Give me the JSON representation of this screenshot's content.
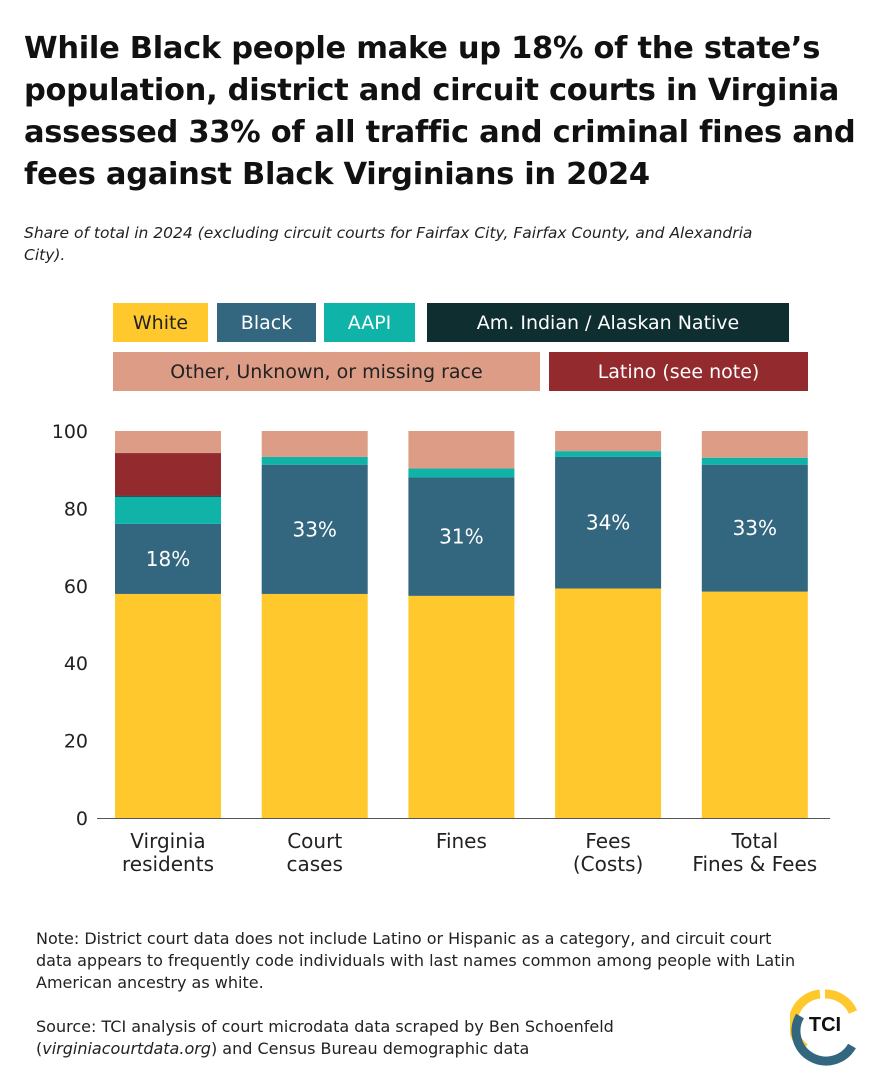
{
  "title": "While Black people make up 18% of the state’s population, district and circuit courts in Virginia assessed 33% of all traffic and criminal fines and fees against Black Virginians in 2024",
  "subtitle": "Share of total in 2024 (excluding circuit courts for Fairfax City, Fairfax County, and Alexandria City).",
  "legend": [
    {
      "label": "White",
      "color": "#FFC82C",
      "text_color": "#222222"
    },
    {
      "label": "Black",
      "color": "#33667F",
      "text_color": "#ffffff"
    },
    {
      "label": "AAPI",
      "color": "#0FB3A8",
      "text_color": "#ffffff"
    },
    {
      "label": "Am. Indian / Alaskan Native",
      "color": "#0E2E30",
      "text_color": "#ffffff"
    },
    {
      "label": "Other, Unknown, or missing race",
      "color": "#DC9C86",
      "text_color": "#222222"
    },
    {
      "label": "Latino (see note)",
      "color": "#922A2E",
      "text_color": "#ffffff"
    }
  ],
  "chart_data": {
    "type": "bar",
    "stacked": true,
    "categories": [
      [
        "Virginia",
        "residents"
      ],
      [
        "Court",
        "cases"
      ],
      [
        "Fines"
      ],
      [
        "Fees",
        "(Costs)"
      ],
      [
        "Total",
        "Fines & Fees"
      ]
    ],
    "series": [
      {
        "name": "White",
        "color": "#FFC82C",
        "values": [
          57.9,
          57.9,
          57.4,
          59.3,
          58.5
        ]
      },
      {
        "name": "Black",
        "color": "#33667F",
        "values": [
          18.1,
          33.4,
          30.6,
          34.0,
          32.8
        ],
        "data_labels": [
          "18%",
          "33%",
          "31%",
          "34%",
          "33%"
        ]
      },
      {
        "name": "AAPI",
        "color": "#0FB3A8",
        "values": [
          7.0,
          2.0,
          2.3,
          1.5,
          1.8
        ]
      },
      {
        "name": "Am. Indian / Alaskan Native",
        "color": "#0E2E30",
        "values": [
          0.3,
          0,
          0,
          0,
          0
        ]
      },
      {
        "name": "Latino (see note)",
        "color": "#922A2E",
        "values": [
          11.0,
          0,
          0,
          0,
          0
        ]
      },
      {
        "name": "Other, Unknown, or missing race",
        "color": "#DC9C86",
        "values": [
          5.7,
          6.7,
          9.7,
          5.2,
          6.9
        ]
      }
    ],
    "ylim": [
      0,
      100
    ],
    "yticks": [
      0,
      20,
      40,
      60,
      80,
      100
    ],
    "grid": false,
    "legend_position": "top"
  },
  "note": "Note: District court data does not include Latino or Hispanic as a category, and circuit court data appears to frequently code individuals with last names common among people with Latin American ancestry as white.",
  "source_prefix": "Source: TCI analysis of court microdata data scraped by Ben Schoenfeld",
  "source_link": "virginiacourtdata.org",
  "source_suffix": "and Census Bureau demographic data",
  "logo": {
    "text": "TCI",
    "colors": [
      "#FFC82C",
      "#33667F"
    ]
  }
}
